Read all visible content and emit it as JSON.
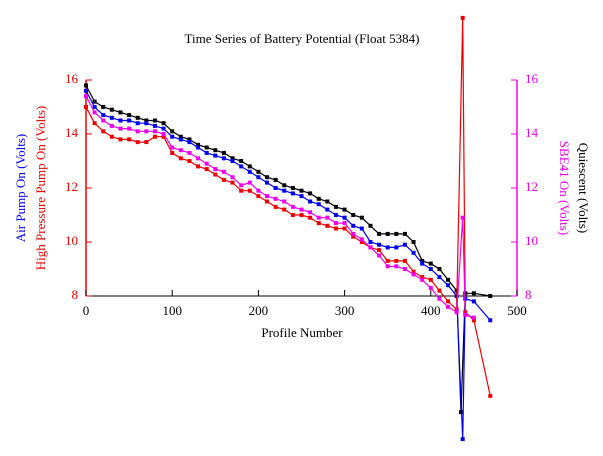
{
  "chart_data": {
    "type": "line",
    "title": "Time Series of Battery Potential (Float 5384)",
    "xlabel": "Profile Number",
    "xlim": [
      0,
      500
    ],
    "xticks": [
      0,
      100,
      200,
      300,
      400,
      500
    ],
    "ylim": [
      8,
      16
    ],
    "yticks": [
      8,
      10,
      12,
      14,
      16
    ],
    "y_axis_color": "#ee0000",
    "y2lim": [
      8,
      16
    ],
    "y2ticks": [
      8,
      10,
      12,
      14,
      16
    ],
    "y2_axis_color": "#ee00ee",
    "series": [
      {
        "name": "Quiescent (Volts)",
        "color": "#000000",
        "axis": "y2",
        "x": [
          0,
          10,
          20,
          30,
          40,
          50,
          60,
          70,
          80,
          90,
          100,
          110,
          120,
          130,
          140,
          150,
          160,
          170,
          180,
          190,
          200,
          210,
          220,
          230,
          240,
          250,
          260,
          270,
          280,
          290,
          300,
          310,
          320,
          330,
          340,
          350,
          360,
          370,
          380,
          390,
          400,
          410,
          420,
          430,
          435,
          440,
          450,
          469
        ],
        "values": [
          15.8,
          15.2,
          15.0,
          14.9,
          14.8,
          14.7,
          14.6,
          14.5,
          14.5,
          14.4,
          14.1,
          13.9,
          13.8,
          13.6,
          13.5,
          13.4,
          13.3,
          13.1,
          13.0,
          12.8,
          12.6,
          12.4,
          12.3,
          12.1,
          12.0,
          11.9,
          11.8,
          11.6,
          11.5,
          11.3,
          11.2,
          11.0,
          10.9,
          10.6,
          10.3,
          10.3,
          10.3,
          10.3,
          10.0,
          9.3,
          9.2,
          9.0,
          8.6,
          8.2,
          3.7,
          8.1,
          8.1,
          8.0
        ]
      },
      {
        "name": "Air Pump On (Volts)",
        "color": "#0000ee",
        "axis": "y",
        "x": [
          0,
          10,
          20,
          30,
          40,
          50,
          60,
          70,
          80,
          90,
          100,
          110,
          120,
          130,
          140,
          150,
          160,
          170,
          180,
          190,
          200,
          210,
          220,
          230,
          240,
          250,
          260,
          270,
          280,
          290,
          300,
          310,
          320,
          330,
          340,
          350,
          360,
          370,
          380,
          390,
          400,
          410,
          420,
          430,
          437,
          440,
          450,
          469
        ],
        "values": [
          15.6,
          15.0,
          14.7,
          14.6,
          14.5,
          14.5,
          14.4,
          14.4,
          14.3,
          14.2,
          13.9,
          13.8,
          13.7,
          13.5,
          13.3,
          13.2,
          13.1,
          13.0,
          12.8,
          12.6,
          12.4,
          12.2,
          12.0,
          11.9,
          11.8,
          11.7,
          11.5,
          11.4,
          11.2,
          11.0,
          10.9,
          10.6,
          10.5,
          10.0,
          9.9,
          9.8,
          9.8,
          9.9,
          9.6,
          9.2,
          9.0,
          8.7,
          8.4,
          8.0,
          2.7,
          7.9,
          7.8,
          7.1
        ]
      },
      {
        "name": "High Pressure Pump On (Volts)",
        "color": "#ee0000",
        "axis": "y",
        "x": [
          0,
          10,
          20,
          30,
          40,
          50,
          60,
          70,
          80,
          90,
          100,
          110,
          120,
          130,
          140,
          150,
          160,
          170,
          180,
          190,
          200,
          210,
          220,
          230,
          240,
          250,
          260,
          270,
          280,
          290,
          300,
          310,
          320,
          330,
          340,
          350,
          360,
          370,
          380,
          390,
          400,
          410,
          420,
          430,
          437,
          440,
          450,
          469
        ],
        "values": [
          15.0,
          14.4,
          14.1,
          13.9,
          13.8,
          13.8,
          13.7,
          13.7,
          13.9,
          13.9,
          13.3,
          13.1,
          13.0,
          12.8,
          12.7,
          12.5,
          12.3,
          12.2,
          11.9,
          11.9,
          11.7,
          11.5,
          11.3,
          11.2,
          11.0,
          11.0,
          10.9,
          10.7,
          10.6,
          10.5,
          10.5,
          10.2,
          10.0,
          9.8,
          9.7,
          9.3,
          9.3,
          9.3,
          8.9,
          8.7,
          8.6,
          8.2,
          7.8,
          7.5,
          18.3,
          7.4,
          7.1,
          4.3
        ]
      },
      {
        "name": "SBE41 On (Volts)",
        "color": "#ee00ee",
        "axis": "y2",
        "x": [
          0,
          10,
          20,
          30,
          40,
          50,
          60,
          70,
          80,
          90,
          100,
          110,
          120,
          130,
          140,
          150,
          160,
          170,
          180,
          190,
          200,
          210,
          220,
          230,
          240,
          250,
          260,
          270,
          280,
          290,
          300,
          310,
          320,
          330,
          340,
          350,
          360,
          370,
          380,
          390,
          400,
          410,
          420,
          430,
          437,
          440,
          450
        ],
        "values": [
          15.4,
          14.8,
          14.5,
          14.3,
          14.2,
          14.2,
          14.1,
          14.1,
          14.1,
          14.0,
          13.5,
          13.4,
          13.3,
          13.1,
          12.9,
          12.7,
          12.6,
          12.4,
          12.1,
          12.2,
          11.9,
          11.7,
          11.6,
          11.5,
          11.3,
          11.2,
          11.1,
          10.9,
          10.9,
          10.7,
          10.7,
          10.3,
          10.1,
          9.8,
          9.5,
          9.1,
          9.1,
          9.0,
          8.8,
          8.6,
          8.3,
          7.9,
          7.6,
          7.4,
          10.9,
          7.3,
          7.2
        ]
      }
    ]
  }
}
